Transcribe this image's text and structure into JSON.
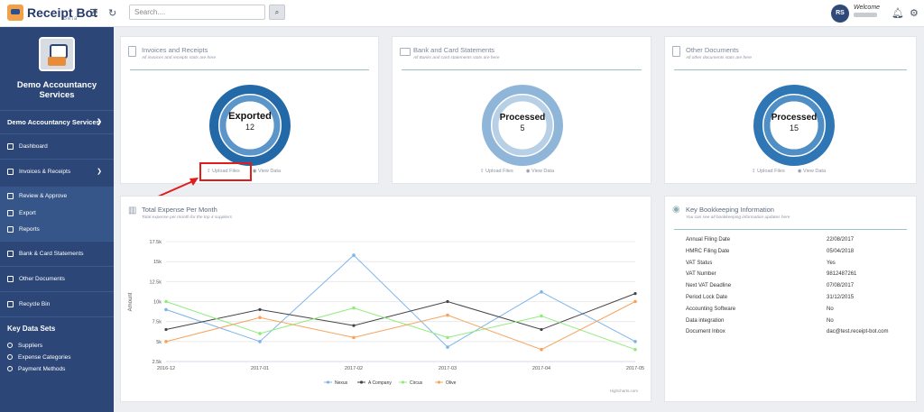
{
  "header": {
    "app_name": "Receipt Bot",
    "app_sub": "Beta",
    "search_placeholder": "Search....",
    "avatar_initials": "RS",
    "welcome": "Welcome"
  },
  "sidebar": {
    "org_name_line1": "Demo Accountancy",
    "org_name_line2": "Services",
    "org_select": "Demo Accountancy Services",
    "items": [
      {
        "label": "Dashboard"
      },
      {
        "label": "Invoices & Receipts"
      },
      {
        "label": "Review & Approve"
      },
      {
        "label": "Export"
      },
      {
        "label": "Reports"
      },
      {
        "label": "Bank & Card Statements"
      },
      {
        "label": "Other Documents"
      },
      {
        "label": "Recycle Bin"
      }
    ],
    "key_data_title": "Key Data Sets",
    "key_data_items": [
      {
        "label": "Suppliers"
      },
      {
        "label": "Expense Categories"
      },
      {
        "label": "Payment Methods"
      }
    ]
  },
  "cards": {
    "invoices": {
      "title": "Invoices and Receipts",
      "subtitle": "All invoices and receipts stats are here",
      "status": "Exported",
      "count": "12",
      "upload": "Upload Files",
      "view": "View Data",
      "color": "#2369a8"
    },
    "bank": {
      "title": "Bank and Card Statements",
      "subtitle": "All Banks and card statements stats are here",
      "status": "Processed",
      "count": "5",
      "upload": "Upload Files",
      "view": "View Data",
      "color": "#8fb6d8"
    },
    "other": {
      "title": "Other Documents",
      "subtitle": "All other documents stats are here",
      "status": "Processed",
      "count": "15",
      "upload": "Upload Files",
      "view": "View Data",
      "color": "#2f76b4"
    }
  },
  "expense": {
    "title": "Total Expense Per Month",
    "subtitle": "Total expense per month for the top 4 suppliers",
    "credit": "Highcharts.com"
  },
  "chart_data": {
    "type": "line",
    "title": "Total Expense Per Month",
    "ylabel": "Amount",
    "xlabel": "",
    "categories": [
      "2016-12",
      "2017-01",
      "2017-02",
      "2017-03",
      "2017-04",
      "2017-05"
    ],
    "yticks": [
      "2.5k",
      "5k",
      "7.5k",
      "10k",
      "12.5k",
      "15k",
      "17.5k"
    ],
    "ylim": [
      2500,
      17500
    ],
    "grid": true,
    "legend": "bottom",
    "series": [
      {
        "name": "Nexus",
        "color": "#7cb5ec",
        "values": [
          9000,
          5000,
          15800,
          4300,
          11200,
          5000
        ]
      },
      {
        "name": "A Company",
        "color": "#434348",
        "values": [
          6500,
          9000,
          7000,
          10000,
          6500,
          11000
        ]
      },
      {
        "name": "Circus",
        "color": "#90ed7d",
        "values": [
          10000,
          6000,
          9200,
          5500,
          8200,
          4000
        ]
      },
      {
        "name": "Olive",
        "color": "#f7a35c",
        "values": [
          5000,
          8000,
          5500,
          8300,
          4000,
          10000
        ]
      }
    ]
  },
  "bookkeeping": {
    "title": "Key Bookkeeping Information",
    "subtitle": "You can see all bookkeeping information updates here",
    "rows": [
      {
        "label": "Annual Filing Date",
        "value": "22/08/2017"
      },
      {
        "label": "HMRC Filing Date",
        "value": "05/04/2018"
      },
      {
        "label": "VAT Status",
        "value": "Yes"
      },
      {
        "label": "VAT Number",
        "value": "9812487261"
      },
      {
        "label": "Next VAT Deadline",
        "value": "07/08/2017"
      },
      {
        "label": "Period Lock Date",
        "value": "31/12/2015"
      },
      {
        "label": "Accounting Software",
        "value": "No"
      },
      {
        "label": "Data integration",
        "value": "No"
      },
      {
        "label": "Document Inbox",
        "value": "dac@test.receipt-bot.com"
      }
    ]
  }
}
